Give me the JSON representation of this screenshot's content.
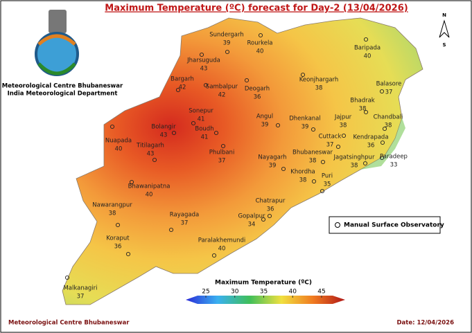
{
  "title": "Maximum Temperature (ºC) forecast for Day-2 (13/04/2026)",
  "header": {
    "org": "Meteorological Centre Bhubaneswar",
    "dept": "India Meteorological Department"
  },
  "north": "N",
  "south": "S",
  "stations": [
    {
      "name": "Sundergarh",
      "value": 39
    },
    {
      "name": "Rourkela",
      "value": 40
    },
    {
      "name": "Jharsuguda",
      "value": 43
    },
    {
      "name": "Baripada",
      "value": 40
    },
    {
      "name": "Bargarh",
      "value": 42
    },
    {
      "name": "Sambalpur",
      "value": 42
    },
    {
      "name": "Keonjhargarh",
      "value": 38
    },
    {
      "name": "Deogarh",
      "value": 36
    },
    {
      "name": "Balasore",
      "value": 37
    },
    {
      "name": "Bhadrak",
      "value": 38
    },
    {
      "name": "Sonepur",
      "value": 41
    },
    {
      "name": "Angul",
      "value": 39
    },
    {
      "name": "Dhenkanal",
      "value": 39
    },
    {
      "name": "Jajpur",
      "value": 38
    },
    {
      "name": "Chandbali",
      "value": 38
    },
    {
      "name": "Bolangir",
      "value": 43
    },
    {
      "name": "Boudh",
      "value": 41
    },
    {
      "name": "Nuapada",
      "value": 40
    },
    {
      "name": "Cuttack",
      "value": 37
    },
    {
      "name": "Kendrapada",
      "value": 36
    },
    {
      "name": "Titilagarh",
      "value": 43
    },
    {
      "name": "Phulbani",
      "value": 37
    },
    {
      "name": "Bhubaneswar",
      "value": 38
    },
    {
      "name": "Paradeep",
      "value": 33
    },
    {
      "name": "Nayagarh",
      "value": 39
    },
    {
      "name": "Jagatsinghpur",
      "value": 38
    },
    {
      "name": "Khordha",
      "value": 38
    },
    {
      "name": "Bhawanipatna",
      "value": 40
    },
    {
      "name": "Puri",
      "value": 35
    },
    {
      "name": "Chatrapur",
      "value": 36
    },
    {
      "name": "Nawarangpur",
      "value": 38
    },
    {
      "name": "Rayagada",
      "value": 37
    },
    {
      "name": "Gopalpur",
      "value": 34
    },
    {
      "name": "Koraput",
      "value": 36
    },
    {
      "name": "Paralakhemundi",
      "value": 40
    },
    {
      "name": "Malkanagiri",
      "value": 37
    }
  ],
  "legend": {
    "label": "Manual Surface Observatory"
  },
  "colorbar": {
    "title": "Maximum Temperature (ºC)",
    "ticks": [
      25,
      30,
      35,
      40,
      45
    ]
  },
  "footer": {
    "left": "Meteorological Centre Bhubaneswar",
    "right": "Date: 12/04/2026"
  }
}
